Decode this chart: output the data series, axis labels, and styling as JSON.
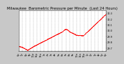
{
  "title": "Milwaukee  Barometric Pressure per Minute  (Last 24 Hours)",
  "bg_color": "#c8c8c8",
  "plot_bg_color": "#ffffff",
  "line_color": "#ff0000",
  "grid_color": "#999999",
  "text_color": "#000000",
  "ylim": [
    29.65,
    30.35
  ],
  "yticks": [
    29.7,
    29.8,
    29.9,
    30.0,
    30.1,
    30.2,
    30.3
  ],
  "ytick_labels": [
    "29.7",
    "29.8",
    "29.9",
    "30.0",
    "30.1",
    "30.2",
    "30.3"
  ],
  "x_tick_labels": [
    "6p",
    "7p",
    "8p",
    "9p",
    "10p",
    "11p",
    "12a",
    "1a",
    "2a",
    "3a",
    "4a",
    "5a",
    "6a",
    "7a",
    "8a",
    "9a",
    "10a",
    "11a",
    "12p",
    "1p",
    "2p",
    "3p",
    "4p",
    "5p",
    "6p"
  ],
  "title_fontsize": 3.8,
  "tick_fontsize": 2.5,
  "marker_size": 0.6
}
